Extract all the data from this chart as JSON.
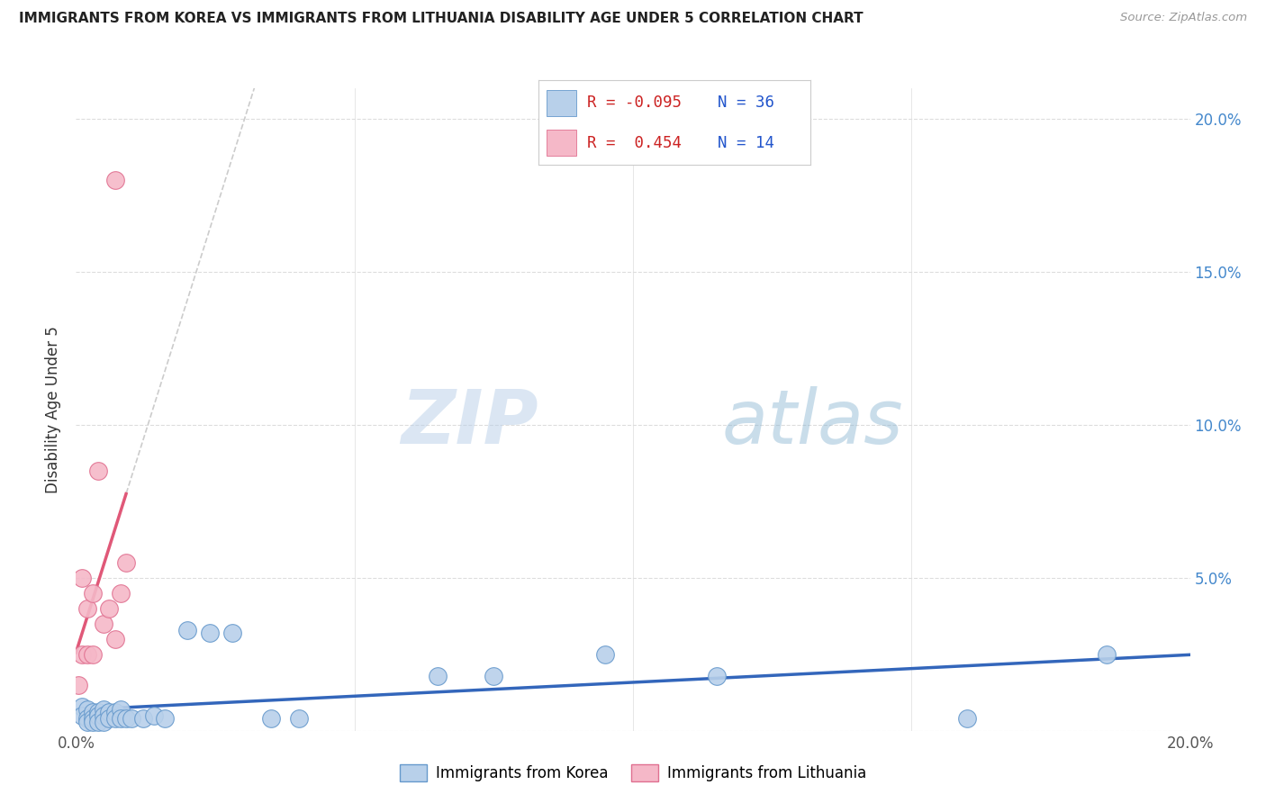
{
  "title": "IMMIGRANTS FROM KOREA VS IMMIGRANTS FROM LITHUANIA DISABILITY AGE UNDER 5 CORRELATION CHART",
  "source": "Source: ZipAtlas.com",
  "ylabel": "Disability Age Under 5",
  "legend_korea_R": "-0.095",
  "legend_korea_N": "36",
  "legend_lithuania_R": "0.454",
  "legend_lithuania_N": "14",
  "korea_color": "#b8d0ea",
  "lithuania_color": "#f5b8c8",
  "korea_edge_color": "#6699cc",
  "lithuania_edge_color": "#e07090",
  "korea_line_color": "#3366bb",
  "lithuania_line_color": "#e05878",
  "dash_color": "#cccccc",
  "xlim": [
    0.0,
    0.2
  ],
  "ylim": [
    0.0,
    0.21
  ],
  "x_ticks": [
    0.0,
    0.05,
    0.1,
    0.15,
    0.2
  ],
  "y_ticks": [
    0.0,
    0.05,
    0.1,
    0.15,
    0.2
  ],
  "y_tick_labels_right": [
    "",
    "5.0%",
    "10.0%",
    "15.0%",
    "20.0%"
  ],
  "watermark_zip": "ZIP",
  "watermark_atlas": "atlas",
  "grid_color": "#dddddd",
  "korea_x": [
    0.001,
    0.001,
    0.002,
    0.002,
    0.002,
    0.003,
    0.003,
    0.003,
    0.004,
    0.004,
    0.004,
    0.005,
    0.005,
    0.005,
    0.006,
    0.006,
    0.007,
    0.007,
    0.008,
    0.008,
    0.009,
    0.01,
    0.012,
    0.014,
    0.016,
    0.02,
    0.024,
    0.028,
    0.035,
    0.04,
    0.065,
    0.075,
    0.095,
    0.115,
    0.16,
    0.185
  ],
  "korea_y": [
    0.008,
    0.005,
    0.007,
    0.004,
    0.003,
    0.006,
    0.004,
    0.003,
    0.006,
    0.005,
    0.003,
    0.007,
    0.005,
    0.003,
    0.006,
    0.004,
    0.006,
    0.004,
    0.007,
    0.004,
    0.004,
    0.004,
    0.004,
    0.005,
    0.004,
    0.033,
    0.032,
    0.032,
    0.004,
    0.004,
    0.018,
    0.018,
    0.025,
    0.018,
    0.004,
    0.025
  ],
  "lith_x": [
    0.0005,
    0.001,
    0.001,
    0.002,
    0.002,
    0.003,
    0.003,
    0.004,
    0.005,
    0.006,
    0.007,
    0.007,
    0.008,
    0.009
  ],
  "lith_y": [
    0.015,
    0.025,
    0.05,
    0.025,
    0.04,
    0.025,
    0.045,
    0.085,
    0.035,
    0.04,
    0.03,
    0.18,
    0.045,
    0.055
  ]
}
